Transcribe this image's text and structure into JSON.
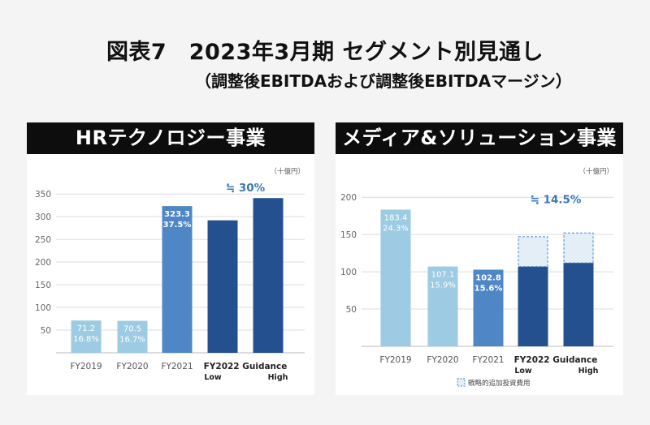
{
  "title": "図表7　2023年3月期 セグメント別見通し",
  "subtitle": "（調整後EBITDAおよび調整後EBITDAマージン）",
  "colors": {
    "fy2019_2020": "#9ccbe3",
    "fy2021": "#4f86c6",
    "guidance": "#24508f",
    "strategic": "#e3eef7",
    "growth_label": "#3a78b8"
  },
  "chart_data": [
    {
      "type": "bar",
      "title": "HRテクノロジー事業",
      "unit": "（十億円）",
      "categories": [
        "FY2019",
        "FY2020",
        "FY2021",
        "FY2022 Guidance Low",
        "FY2022 Guidance High"
      ],
      "category_labels": [
        "FY2019",
        "FY2020",
        "FY2021"
      ],
      "guidance_label": "FY2022 Guidance",
      "low_label": "Low",
      "high_label": "High",
      "values": [
        71.2,
        70.5,
        323.3,
        292,
        341
      ],
      "value_labels": [
        "71.2",
        "70.5",
        "323.3",
        "",
        ""
      ],
      "margin_labels": [
        "16.8%",
        "16.7%",
        "37.5%",
        "",
        ""
      ],
      "growth_annotation": "≒ 30%",
      "ylim": [
        0,
        370
      ],
      "yticks": [
        50,
        100,
        150,
        200,
        250,
        300,
        350
      ],
      "grid": true
    },
    {
      "type": "bar",
      "title": "メディア&ソリューション事業",
      "unit": "（十億円）",
      "categories": [
        "FY2019",
        "FY2020",
        "FY2021",
        "FY2022 Guidance Low",
        "FY2022 Guidance High"
      ],
      "category_labels": [
        "FY2019",
        "FY2020",
        "FY2021"
      ],
      "guidance_label": "FY2022 Guidance",
      "low_label": "Low",
      "high_label": "High",
      "values": [
        183.4,
        107.1,
        102.8,
        107,
        112
      ],
      "strategic_investment": [
        0,
        0,
        0,
        40,
        40
      ],
      "value_labels": [
        "183.4",
        "107.1",
        "102.8",
        "",
        ""
      ],
      "margin_labels": [
        "24.3%",
        "15.9%",
        "15.6%",
        "",
        ""
      ],
      "growth_annotation": "≒ 14.5%",
      "legend": "戦略的追加投資費用",
      "ylim": [
        0,
        210
      ],
      "yticks": [
        50,
        100,
        150,
        200
      ],
      "grid": true
    }
  ]
}
